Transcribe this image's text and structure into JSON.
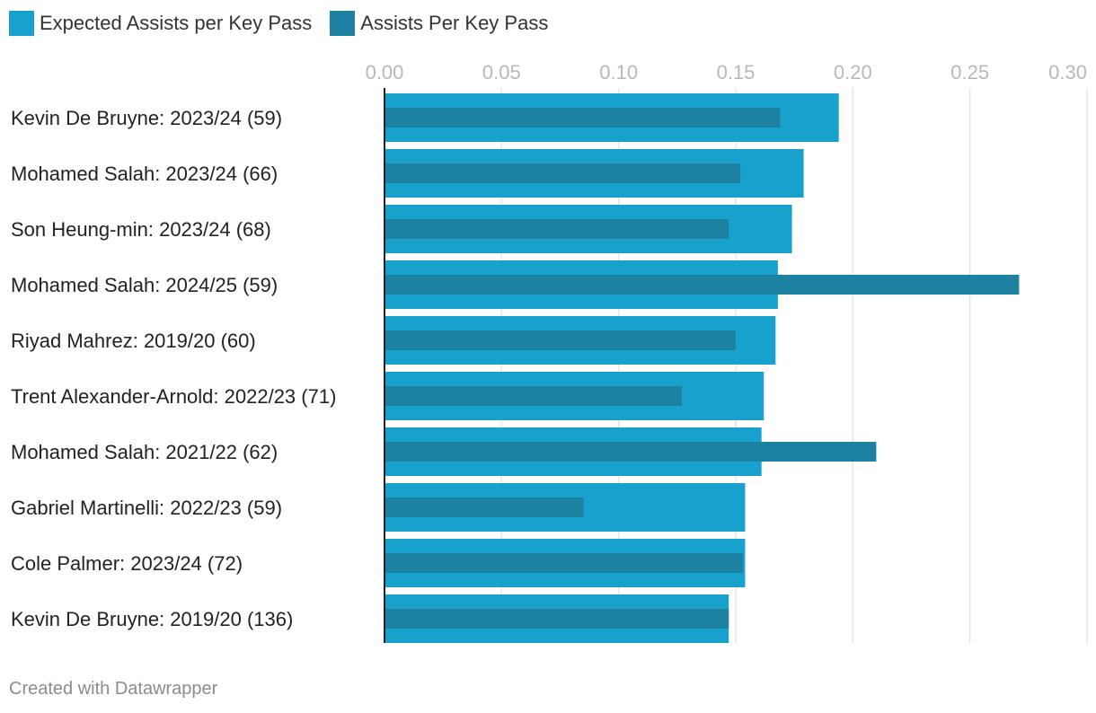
{
  "legend": {
    "xa_label": "Expected Assists per Key Pass",
    "apk_label": "Assists Per Key Pass"
  },
  "colors": {
    "xa": "#18a1cd",
    "apk": "#1d81a2",
    "grid": "#e6e6e6",
    "axis": "#222222"
  },
  "credit": "Created with Datawrapper",
  "chart_data": {
    "type": "bar",
    "orientation": "horizontal",
    "title": "",
    "xlabel": "",
    "ylabel": "",
    "xlim": [
      0,
      0.3
    ],
    "ticks": [
      "0.00",
      "0.05",
      "0.10",
      "0.15",
      "0.20",
      "0.25",
      "0.30"
    ],
    "tick_values": [
      0,
      0.05,
      0.1,
      0.15,
      0.2,
      0.25,
      0.3
    ],
    "grid": true,
    "legend_position": "top-left",
    "categories": [
      "Kevin De Bruyne: 2023/24 (59)",
      "Mohamed Salah: 2023/24 (66)",
      "Son Heung-min: 2023/24 (68)",
      "Mohamed Salah: 2024/25 (59)",
      "Riyad Mahrez: 2019/20 (60)",
      "Trent Alexander-Arnold: 2022/23 (71)",
      "Mohamed Salah: 2021/22 (62)",
      "Gabriel Martinelli: 2022/23 (59)",
      "Cole Palmer: 2023/24 (72)",
      "Kevin De Bruyne: 2019/20 (136)"
    ],
    "series": [
      {
        "name": "Expected Assists per Key Pass",
        "values": [
          0.194,
          0.179,
          0.174,
          0.168,
          0.167,
          0.162,
          0.161,
          0.154,
          0.154,
          0.147
        ]
      },
      {
        "name": "Assists Per Key Pass",
        "values": [
          0.169,
          0.152,
          0.147,
          0.271,
          0.15,
          0.127,
          0.21,
          0.085,
          0.153,
          0.147
        ]
      }
    ]
  }
}
